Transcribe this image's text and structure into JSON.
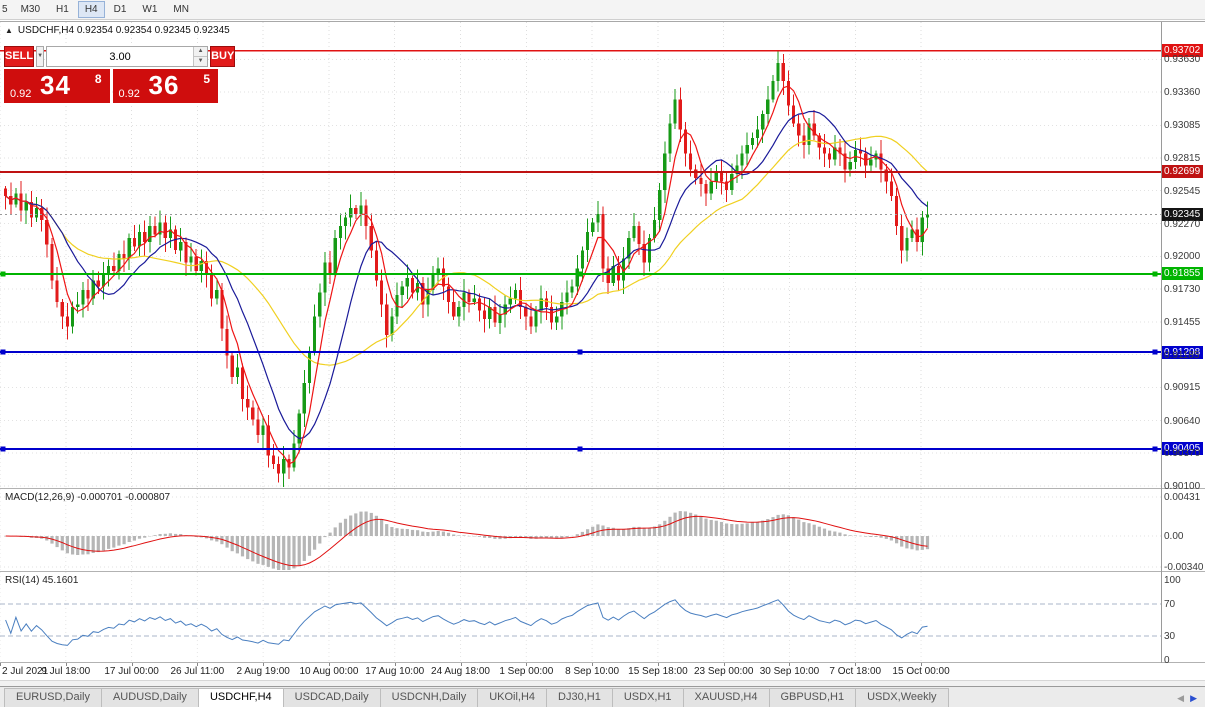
{
  "icons": {
    "title": "▲",
    "dropdown": "▼",
    "spin_up": "▲",
    "spin_down": "▼",
    "tab_prev": "◀",
    "tab_next": "▶"
  },
  "toolbar": {
    "periods": [
      "5",
      "M30",
      "H1",
      "H4",
      "D1",
      "W1",
      "MN"
    ],
    "active_period": "H4"
  },
  "window": {
    "title": "USDCHF,H4 0.92354 0.92354 0.92345 0.92345"
  },
  "trade_panel": {
    "sell_label": "SELL",
    "buy_label": "BUY",
    "volume": "3.00",
    "sell_quote": {
      "small": "0.92",
      "big": "34",
      "sup": "8"
    },
    "buy_quote": {
      "small": "0.92",
      "big": "36",
      "sup": "5"
    }
  },
  "price_axis": {
    "labels": [
      "0.93630",
      "0.93360",
      "0.93085",
      "0.92815",
      "0.92545",
      "0.92270",
      "0.92000",
      "0.91730",
      "0.91455",
      "0.91185",
      "0.90915",
      "0.90640",
      "0.90370",
      "0.90100"
    ],
    "hlines": [
      {
        "label": "0.93702",
        "price": 0.93702,
        "color": "#e01212",
        "width": 1.4,
        "handles": false
      },
      {
        "label": "0.92699",
        "price": 0.92699,
        "color": "#bf1212",
        "width": 2,
        "handles": false
      },
      {
        "label": "0.91855",
        "price": 0.91855,
        "color": "#00b400",
        "width": 2,
        "handles": true
      },
      {
        "label": "0.91208",
        "price": 0.91208,
        "color": "#0000cc",
        "width": 2,
        "handles": true
      },
      {
        "label": "0.90405",
        "price": 0.90405,
        "color": "#0000cc",
        "width": 2,
        "handles": true
      }
    ],
    "current": {
      "label": "0.92345",
      "price": 0.92345,
      "bg": "#141414"
    }
  },
  "chart_data": {
    "type": "candlestick",
    "title": "USDCHF,H4",
    "up_color": "#169a16",
    "down_color": "#e21b1b",
    "wick_amp": 0.0009,
    "candles_close": [
      0.925,
      0.9243,
      0.9252,
      0.9238,
      0.9245,
      0.9232,
      0.924,
      0.923,
      0.921,
      0.918,
      0.9162,
      0.915,
      0.9142,
      0.9158,
      0.916,
      0.9172,
      0.9165,
      0.918,
      0.9175,
      0.9185,
      0.9192,
      0.9188,
      0.9202,
      0.9198,
      0.9215,
      0.9208,
      0.922,
      0.9212,
      0.9225,
      0.9218,
      0.9228,
      0.9215,
      0.9222,
      0.9205,
      0.9212,
      0.9195,
      0.92,
      0.9188,
      0.9196,
      0.9185,
      0.9165,
      0.9172,
      0.914,
      0.9118,
      0.91,
      0.9108,
      0.9082,
      0.9075,
      0.9065,
      0.9052,
      0.906,
      0.9035,
      0.9028,
      0.902,
      0.9032,
      0.9025,
      0.9045,
      0.907,
      0.9095,
      0.912,
      0.915,
      0.917,
      0.9195,
      0.9185,
      0.9215,
      0.9225,
      0.9232,
      0.924,
      0.9235,
      0.9242,
      0.9225,
      0.9205,
      0.918,
      0.916,
      0.9135,
      0.915,
      0.9168,
      0.9175,
      0.9182,
      0.917,
      0.9178,
      0.916,
      0.9172,
      0.9185,
      0.919,
      0.9175,
      0.9162,
      0.915,
      0.9158,
      0.917,
      0.9162,
      0.9165,
      0.9155,
      0.9148,
      0.9158,
      0.9145,
      0.9152,
      0.916,
      0.9165,
      0.9172,
      0.9158,
      0.915,
      0.9142,
      0.9155,
      0.9165,
      0.9158,
      0.9145,
      0.915,
      0.9162,
      0.917,
      0.9175,
      0.919,
      0.9205,
      0.922,
      0.9228,
      0.9235,
      0.919,
      0.9178,
      0.9192,
      0.918,
      0.9198,
      0.9215,
      0.9225,
      0.921,
      0.9195,
      0.9215,
      0.923,
      0.9255,
      0.9285,
      0.931,
      0.933,
      0.9305,
      0.9285,
      0.9272,
      0.9265,
      0.926,
      0.9252,
      0.9262,
      0.927,
      0.9262,
      0.9255,
      0.9268,
      0.9275,
      0.9285,
      0.9292,
      0.9298,
      0.9305,
      0.9318,
      0.933,
      0.9345,
      0.936,
      0.9345,
      0.9325,
      0.931,
      0.93,
      0.9292,
      0.931,
      0.93,
      0.929,
      0.9285,
      0.928,
      0.929,
      0.9285,
      0.9272,
      0.9278,
      0.9288,
      0.9285,
      0.9275,
      0.928,
      0.9285,
      0.9272,
      0.9262,
      0.925,
      0.9225,
      0.9205,
      0.9215,
      0.9222,
      0.9212,
      0.9232,
      0.92345
    ],
    "moving_averages": [
      {
        "period": 28,
        "color": "#f0d020"
      },
      {
        "period": 12,
        "color": "#1a1a99"
      },
      {
        "period": 5,
        "color": "#ee1515"
      }
    ],
    "macd": {
      "fast": 12,
      "slow": 26,
      "signal": 9,
      "line_color": "#e01010",
      "hist_color": "#b6b6b6"
    },
    "rsi": {
      "period": 14,
      "value": 45.1601,
      "color": "#4a7fc0",
      "levels": [
        70,
        30
      ]
    }
  },
  "macd_panel": {
    "label": "MACD(12,26,9) -0.000701 -0.000807",
    "axis_labels": [
      "0.00431",
      "0.00",
      "-0.00340"
    ]
  },
  "rsi_panel": {
    "label": "RSI(14) 45.1601",
    "axis_labels": [
      "100",
      "70",
      "30",
      "0"
    ]
  },
  "time_axis": {
    "labels": [
      "2 Jul 2021",
      "9 Jul 18:00",
      "17 Jul 00:00",
      "26 Jul 11:00",
      "2 Aug 19:00",
      "10 Aug 00:00",
      "17 Aug 10:00",
      "24 Aug 18:00",
      "1 Sep 00:00",
      "8 Sep 10:00",
      "15 Sep 18:00",
      "23 Sep 00:00",
      "30 Sep 10:00",
      "7 Oct 18:00",
      "15 Oct 00:00"
    ]
  },
  "tabs": {
    "items": [
      "EURUSD,Daily",
      "AUDUSD,Daily",
      "USDCHF,H4",
      "USDCAD,Daily",
      "USDCNH,Daily",
      "UKOil,H4",
      "DJ30,H1",
      "USDX,H1",
      "XAUUSD,H4",
      "GBPUSD,H1",
      "USDX,Weekly"
    ],
    "active": "USDCHF,H4"
  }
}
